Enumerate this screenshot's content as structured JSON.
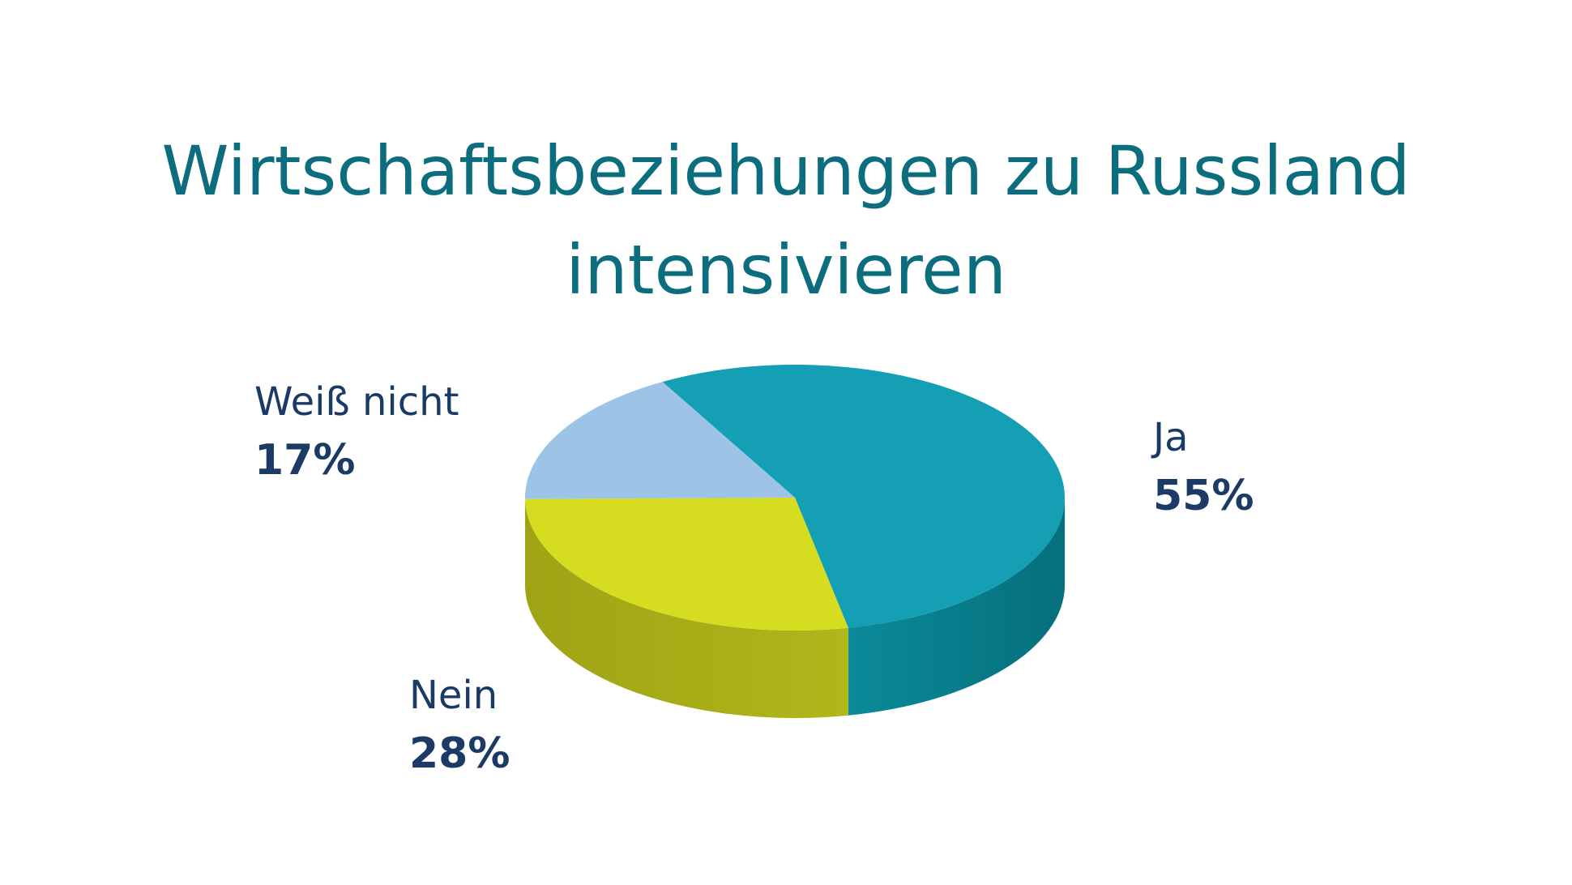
{
  "chart_data": {
    "type": "pie",
    "title_lines": [
      "Wirtschaftsbeziehungen zu Russland",
      "intensivieren"
    ],
    "categories": [
      "Ja",
      "Nein",
      "Weiß nicht"
    ],
    "values": [
      55,
      28,
      17
    ],
    "value_labels": [
      "55%",
      "28%",
      "17%"
    ],
    "colors": {
      "Ja": "#149fb5",
      "Nein": "#d6dd21",
      "Weiß nicht": "#9dc3e7"
    },
    "side_colors": {
      "Ja": "#08808e",
      "Nein": "#a8ab16",
      "Weiß nicht": "#6f8fb2"
    },
    "style": "3d",
    "legend": "none"
  }
}
